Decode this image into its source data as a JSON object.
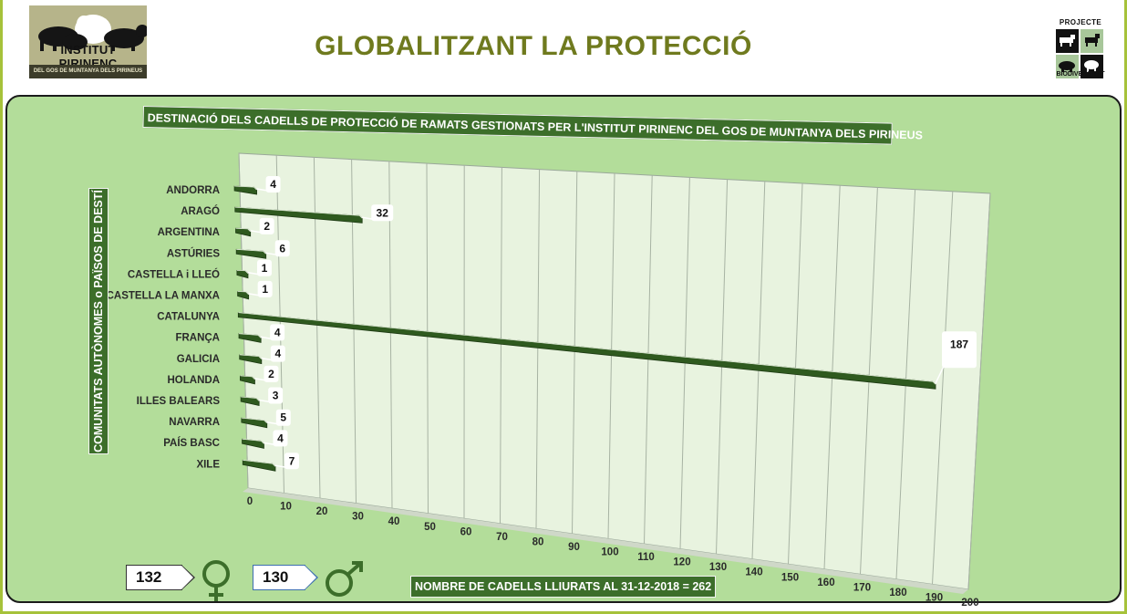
{
  "header": {
    "title": "GLOBALITZANT LA PROTECCIÓ",
    "left_logo": {
      "brand": "INSTITUT PIRINENC",
      "tagline": "DEL GOS DE MUNTANYA DELS PIRINEUS"
    },
    "right_logo": {
      "top": "PROJECTE",
      "bottom": "BIODIVERSITAT"
    }
  },
  "totals": {
    "female_count": "132",
    "male_count": "130",
    "female_icon": "female-symbol-icon",
    "male_icon": "male-symbol-icon",
    "total_label": "NOMBRE DE CADELLS LLIURATS AL 31-12-2018 = 262"
  },
  "colors": {
    "bar": "#2f5a1f",
    "panel": "#b3dd9a",
    "title_bg": "#3c6e2a",
    "header_text": "#6f7a1e"
  },
  "chart_data": {
    "type": "bar",
    "orientation": "horizontal",
    "title": "DESTINACIÓ DELS CADELLS DE PROTECCIÓ DE RAMATS GESTIONATS PER L'INSTITUT PIRINENC DEL GOS DE MUNTANYA DELS PIRINEUS",
    "ylabel": "COMUNITATS AUTÒNOMES o PAÏSOS DE DESTÍ",
    "xlabel": "",
    "categories": [
      "ANDORRA",
      "ARAGÓ",
      "ARGENTINA",
      "ASTÚRIES",
      "CASTELLA i LLEÓ",
      "CASTELLA LA MANXA",
      "CATALUNYA",
      "FRANÇA",
      "GALICIA",
      "HOLANDA",
      "ILLES BALEARS",
      "NAVARRA",
      "PAÍS BASC",
      "XILE"
    ],
    "values": [
      4,
      32,
      2,
      6,
      1,
      1,
      187,
      4,
      4,
      2,
      3,
      5,
      4,
      7
    ],
    "xlim": [
      0,
      200
    ],
    "xticks": [
      "0",
      "10",
      "20",
      "30",
      "40",
      "50",
      "60",
      "70",
      "80",
      "90",
      "100",
      "110",
      "120",
      "130",
      "140",
      "150",
      "160",
      "170",
      "180",
      "190",
      "200"
    ],
    "grid": true
  }
}
